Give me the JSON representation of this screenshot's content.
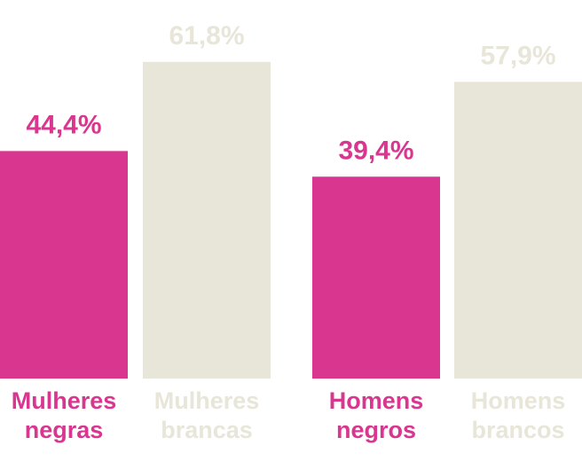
{
  "chart_data": {
    "type": "bar",
    "categories": [
      "Mulheres negras",
      "Mulheres brancas",
      "Homens negros",
      "Homens brancos"
    ],
    "values": [
      44.4,
      61.8,
      39.4,
      57.9
    ],
    "value_labels": [
      "44,4%",
      "61,8%",
      "39,4%",
      "57,9%"
    ],
    "colors": [
      "#d9368f",
      "#e8e5d9",
      "#d9368f",
      "#e8e5d9"
    ]
  }
}
